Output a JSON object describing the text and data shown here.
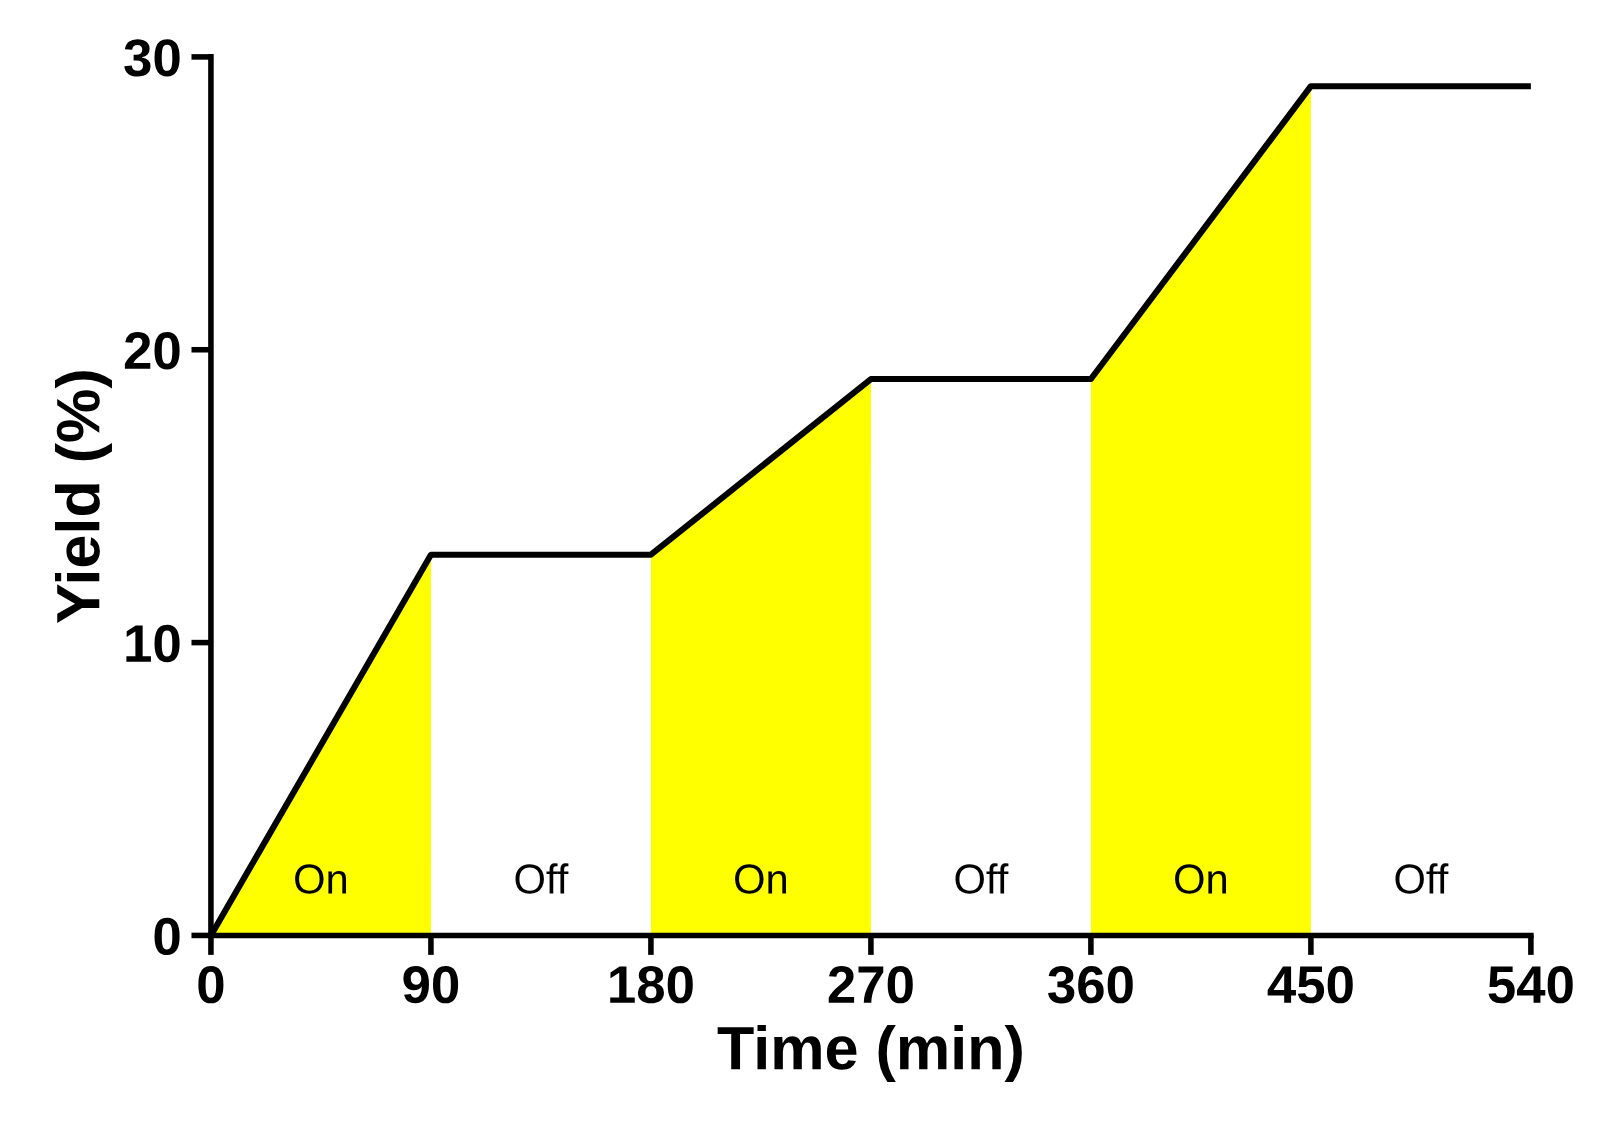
{
  "chart_data": {
    "type": "line",
    "xlabel": "Time (min)",
    "ylabel": "Yield (%)",
    "xlim": [
      0,
      540
    ],
    "xticks": [
      0,
      90,
      180,
      270,
      360,
      450,
      540
    ],
    "ylim": [
      0,
      30
    ],
    "yticks": [
      0,
      10,
      20,
      30
    ],
    "grid": false,
    "marker": "none",
    "line_style": "solid",
    "series": [
      {
        "type": "area",
        "color": "#ffff00",
        "x": [
          0,
          90
        ],
        "values": [
          0,
          13
        ]
      },
      {
        "type": "area",
        "color": "#ffff00",
        "x": [
          180,
          270
        ],
        "values": [
          13,
          19
        ]
      },
      {
        "type": "area",
        "color": "#ffff00",
        "x": [
          360,
          450
        ],
        "values": [
          19,
          29
        ]
      },
      {
        "color": "#000000",
        "x": [
          0,
          90,
          180,
          270,
          360,
          450,
          540
        ],
        "values": [
          0,
          13,
          13,
          19,
          19,
          29,
          29
        ]
      }
    ],
    "annotations": [
      "On",
      "Off",
      "On",
      "Off",
      "On",
      "Off"
    ]
  }
}
